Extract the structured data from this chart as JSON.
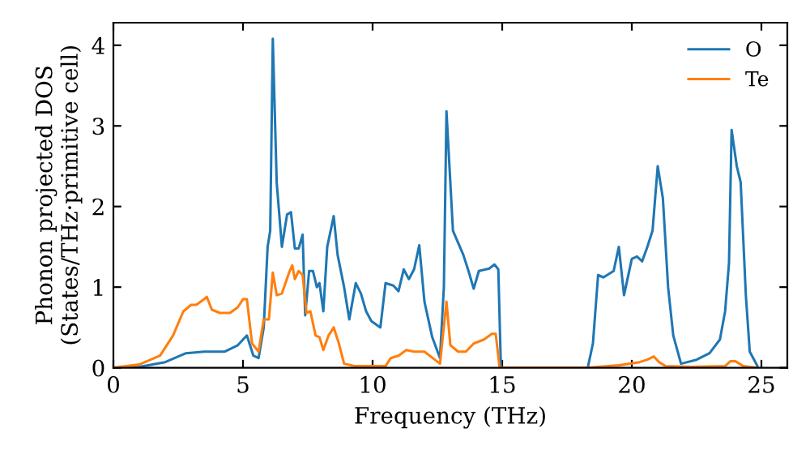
{
  "chart_data": {
    "type": "line",
    "xlabel": "Frequency (THz)",
    "ylabel": "Phonon projected DOS\n(States/THz·primitive cell)",
    "xlim": [
      0,
      26
    ],
    "ylim": [
      0,
      4.28
    ],
    "xticks": [
      0,
      5,
      10,
      15,
      20,
      25
    ],
    "yticks": [
      0,
      1,
      2,
      3,
      4
    ],
    "legend": "top right",
    "grid": false,
    "series": [
      {
        "name": "O",
        "color": "#1f77b4",
        "x": [
          0,
          1,
          2,
          2.8,
          3.5,
          4.3,
          4.8,
          5.15,
          5.4,
          5.6,
          5.8,
          5.95,
          6.05,
          6.15,
          6.3,
          6.5,
          6.7,
          6.85,
          7.0,
          7.15,
          7.3,
          7.4,
          7.55,
          7.7,
          7.85,
          7.95,
          8.1,
          8.25,
          8.5,
          8.65,
          8.9,
          9.1,
          9.35,
          9.55,
          9.75,
          9.95,
          10.3,
          10.5,
          10.8,
          11.0,
          11.2,
          11.4,
          11.6,
          11.8,
          12.0,
          12.3,
          12.6,
          12.75,
          12.85,
          13.1,
          13.5,
          13.7,
          13.9,
          14.1,
          14.5,
          14.7,
          14.85,
          14.95,
          18.3,
          18.5,
          18.7,
          18.9,
          19.3,
          19.5,
          19.7,
          20.0,
          20.2,
          20.4,
          20.6,
          20.8,
          21.0,
          21.2,
          21.4,
          21.6,
          21.9,
          22.5,
          23.0,
          23.4,
          23.6,
          23.75,
          23.85,
          24.05,
          24.2,
          24.4,
          24.55,
          24.85
        ],
        "values": [
          0,
          0.01,
          0.07,
          0.18,
          0.2,
          0.2,
          0.28,
          0.4,
          0.15,
          0.12,
          0.5,
          1.5,
          1.7,
          4.08,
          2.3,
          1.5,
          1.9,
          1.93,
          1.48,
          1.48,
          1.65,
          0.65,
          1.2,
          1.2,
          1.0,
          1.05,
          0.7,
          1.5,
          1.88,
          1.4,
          1.0,
          0.6,
          1.05,
          0.92,
          0.7,
          0.58,
          0.5,
          1.05,
          1.02,
          0.95,
          1.22,
          1.1,
          1.22,
          1.52,
          0.82,
          0.38,
          0.12,
          1.0,
          3.18,
          1.7,
          1.4,
          1.2,
          0.98,
          1.2,
          1.23,
          1.28,
          1.22,
          0,
          0,
          0.3,
          1.15,
          1.12,
          1.2,
          1.5,
          0.9,
          1.35,
          1.38,
          1.32,
          1.5,
          1.7,
          2.5,
          2.1,
          1.0,
          0.4,
          0.05,
          0.1,
          0.18,
          0.35,
          0.7,
          1.3,
          2.95,
          2.5,
          2.3,
          0.9,
          0.2,
          0.02
        ]
      },
      {
        "name": "Te",
        "color": "#ff7f0e",
        "x": [
          0,
          1,
          1.8,
          2.3,
          2.7,
          3.0,
          3.2,
          3.5,
          3.6,
          3.8,
          4.1,
          4.5,
          4.8,
          5.0,
          5.15,
          5.35,
          5.6,
          5.8,
          6.0,
          6.15,
          6.3,
          6.5,
          6.8,
          6.9,
          7.0,
          7.15,
          7.3,
          7.45,
          7.6,
          7.8,
          7.95,
          8.1,
          8.3,
          8.5,
          8.7,
          8.9,
          9.3,
          10.0,
          10.5,
          10.7,
          11.0,
          11.3,
          11.6,
          12.0,
          12.4,
          12.6,
          12.85,
          13.0,
          13.3,
          13.6,
          13.9,
          14.3,
          14.6,
          14.75,
          14.9,
          18.3,
          19.5,
          20.3,
          20.6,
          20.85,
          21.05,
          21.3,
          22.3,
          23.6,
          23.8,
          24.0,
          24.15,
          24.3,
          24.8
        ],
        "values": [
          0,
          0.04,
          0.15,
          0.4,
          0.7,
          0.78,
          0.78,
          0.85,
          0.88,
          0.72,
          0.68,
          0.68,
          0.75,
          0.85,
          0.85,
          0.3,
          0.2,
          0.6,
          0.6,
          1.18,
          0.9,
          0.92,
          1.2,
          1.27,
          1.1,
          1.2,
          1.15,
          0.68,
          0.7,
          0.4,
          0.38,
          0.22,
          0.4,
          0.5,
          0.3,
          0.05,
          0.02,
          0.02,
          0.02,
          0.12,
          0.15,
          0.22,
          0.2,
          0.2,
          0.1,
          0.05,
          0.82,
          0.28,
          0.2,
          0.2,
          0.3,
          0.35,
          0.42,
          0.42,
          0,
          0,
          0.03,
          0.07,
          0.1,
          0.14,
          0.07,
          0.02,
          0.01,
          0.02,
          0.08,
          0.08,
          0.05,
          0.02,
          0
        ]
      }
    ]
  }
}
